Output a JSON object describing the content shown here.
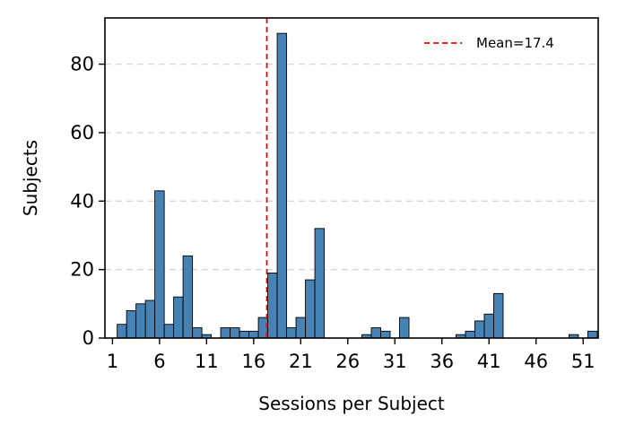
{
  "chart_data": {
    "type": "bar",
    "xlabel": "Sessions per Subject",
    "ylabel": "Subjects",
    "x": [
      2,
      3,
      4,
      5,
      6,
      7,
      8,
      9,
      10,
      11,
      12,
      13,
      14,
      15,
      16,
      17,
      18,
      19,
      20,
      21,
      22,
      23,
      24,
      25,
      26,
      27,
      28,
      29,
      30,
      31,
      32,
      33,
      34,
      35,
      36,
      37,
      38,
      39,
      40,
      41,
      42,
      43,
      44,
      45,
      46,
      47,
      48,
      49,
      50,
      51,
      52
    ],
    "values": [
      4,
      8,
      10,
      11,
      43,
      4,
      12,
      24,
      3,
      1,
      0,
      3,
      3,
      2,
      2,
      6,
      19,
      89,
      3,
      6,
      17,
      32,
      0,
      0,
      0,
      0,
      1,
      3,
      2,
      0,
      6,
      0,
      0,
      0,
      0,
      0,
      1,
      2,
      5,
      7,
      13,
      0,
      0,
      0,
      0,
      0,
      0,
      0,
      1,
      0,
      2
    ],
    "xlim": [
      0.2,
      52.6
    ],
    "ylim": [
      0,
      93.5
    ],
    "xticks": [
      1,
      6,
      11,
      16,
      21,
      26,
      31,
      36,
      41,
      46,
      51
    ],
    "yticks": [
      0,
      20,
      40,
      60,
      80
    ],
    "grid": "y-dashed",
    "bar_color": "#4682b4",
    "bar_edge_color": "#000000",
    "mean_line": {
      "value": 17.4,
      "label": "Mean=17.4",
      "color": "#ff0000",
      "style": "dashed"
    },
    "legend_position": "top-right"
  }
}
